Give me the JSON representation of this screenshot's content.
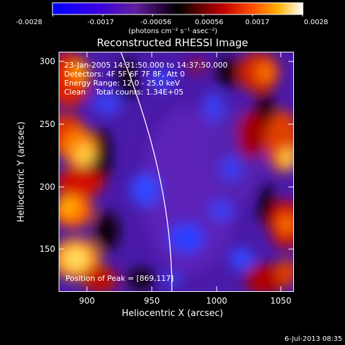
{
  "colorbar": {
    "ticks": [
      "-0.0028",
      "-0.0017",
      "-0.00056",
      "0.00056",
      "0.0017",
      "0.0028"
    ],
    "units_label": "(photons cm⁻² s⁻¹ asec⁻²)"
  },
  "plot": {
    "title": "Reconstructed RHESSI Image",
    "xlabel": "Heliocentric X (arcsec)",
    "ylabel": "Heliocentric Y (arcsec)",
    "xticks": [
      "900",
      "950",
      "1000",
      "1050"
    ],
    "yticks": [
      "300",
      "250",
      "200",
      "150"
    ]
  },
  "annotations": {
    "line1": "23-Jan-2005 14:31:50.000 to 14:37:50.000",
    "line2": "Detectors: 4F 5F 6F 7F 8F, Att 0",
    "line3": "Energy Range: 12.0 - 25.0 keV",
    "line4": "Clean    Total counts: 1.34E+05",
    "peak": "Position of Peak = [869,117]"
  },
  "footer": {
    "date": "6-Jul-2013 08:35"
  }
}
